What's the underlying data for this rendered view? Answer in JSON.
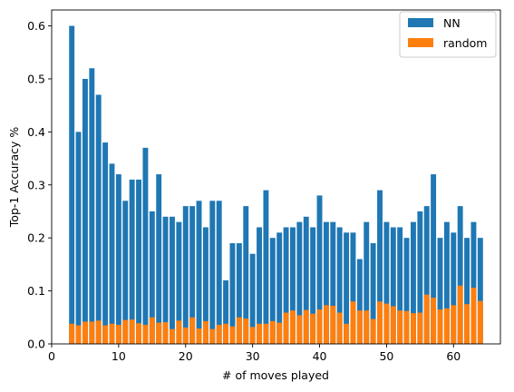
{
  "chart_data": {
    "type": "bar",
    "xlabel": "# of moves played",
    "ylabel": "Top-1 Accuracy %",
    "xlim": [
      0,
      67
    ],
    "ylim": [
      0,
      0.63
    ],
    "x_ticks": [
      0,
      10,
      20,
      30,
      40,
      50,
      60
    ],
    "y_ticks": [
      0.0,
      0.1,
      0.2,
      0.3,
      0.4,
      0.5,
      0.6
    ],
    "x_tick_labels": [
      "0",
      "10",
      "20",
      "30",
      "40",
      "50",
      "60"
    ],
    "y_tick_labels": [
      "0.0",
      "0.1",
      "0.2",
      "0.3",
      "0.4",
      "0.5",
      "0.6"
    ],
    "grid": false,
    "legend_position": "top-right",
    "x": [
      3,
      4,
      5,
      6,
      7,
      8,
      9,
      10,
      11,
      12,
      13,
      14,
      15,
      16,
      17,
      18,
      19,
      20,
      21,
      22,
      23,
      24,
      25,
      26,
      27,
      28,
      29,
      30,
      31,
      32,
      33,
      34,
      35,
      36,
      37,
      38,
      39,
      40,
      41,
      42,
      43,
      44,
      45,
      46,
      47,
      48,
      49,
      50,
      51,
      52,
      53,
      54,
      55,
      56,
      57,
      58,
      59,
      60,
      61,
      62,
      63,
      64
    ],
    "series": [
      {
        "name": "NN",
        "color": "#1f77b4",
        "values": [
          0.6,
          0.4,
          0.5,
          0.52,
          0.47,
          0.38,
          0.34,
          0.32,
          0.27,
          0.31,
          0.31,
          0.37,
          0.25,
          0.32,
          0.24,
          0.24,
          0.23,
          0.26,
          0.26,
          0.27,
          0.22,
          0.27,
          0.27,
          0.12,
          0.19,
          0.19,
          0.26,
          0.17,
          0.22,
          0.29,
          0.2,
          0.21,
          0.22,
          0.22,
          0.23,
          0.24,
          0.22,
          0.28,
          0.23,
          0.23,
          0.22,
          0.21,
          0.21,
          0.16,
          0.23,
          0.19,
          0.29,
          0.23,
          0.22,
          0.22,
          0.2,
          0.23,
          0.25,
          0.26,
          0.32,
          0.2,
          0.23,
          0.21,
          0.26,
          0.2,
          0.23,
          0.2
        ]
      },
      {
        "name": "random",
        "color": "#ff7f0e",
        "values": [
          0.038,
          0.035,
          0.042,
          0.042,
          0.044,
          0.035,
          0.038,
          0.036,
          0.045,
          0.046,
          0.039,
          0.036,
          0.05,
          0.04,
          0.041,
          0.028,
          0.044,
          0.031,
          0.05,
          0.029,
          0.043,
          0.028,
          0.036,
          0.038,
          0.033,
          0.05,
          0.048,
          0.032,
          0.038,
          0.038,
          0.043,
          0.04,
          0.059,
          0.063,
          0.054,
          0.064,
          0.057,
          0.065,
          0.073,
          0.072,
          0.059,
          0.038,
          0.08,
          0.063,
          0.063,
          0.047,
          0.08,
          0.076,
          0.071,
          0.063,
          0.062,
          0.058,
          0.059,
          0.093,
          0.087,
          0.065,
          0.067,
          0.073,
          0.11,
          0.075,
          0.106,
          0.081
        ]
      }
    ]
  }
}
